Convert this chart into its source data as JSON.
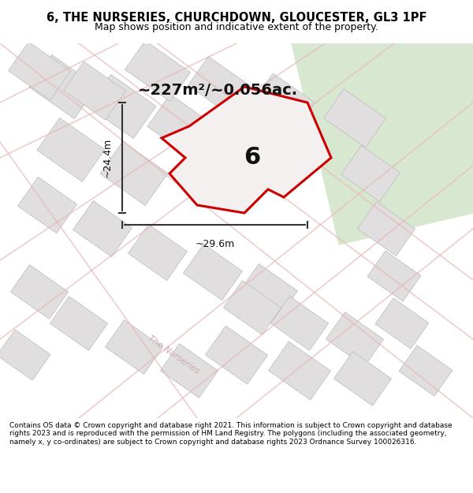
{
  "title_line1": "6, THE NURSERIES, CHURCHDOWN, GLOUCESTER, GL3 1PF",
  "title_line2": "Map shows position and indicative extent of the property.",
  "area_text": "~227m²/~0.056ac.",
  "dim_width": "~29.6m",
  "dim_height": "~24.4m",
  "plot_label": "6",
  "footer_text": "Contains OS data © Crown copyright and database right 2021. This information is subject to Crown copyright and database rights 2023 and is reproduced with the permission of HM Land Registry. The polygons (including the associated geometry, namely x, y co-ordinates) are subject to Crown copyright and database rights 2023 Ordnance Survey 100026316.",
  "bg_color": "#f5f0f0",
  "map_bg": "#f5f0f0",
  "green_area_color": "#d8e8d0",
  "plot_fill": "#f0eeee",
  "plot_edge_color": "#cc0000",
  "road_color": "#e8d0d0",
  "building_color": "#e0dede",
  "building_edge": "#cccccc",
  "dim_line_color": "#333333",
  "title_bg": "#ffffff",
  "footer_bg": "#ffffff"
}
